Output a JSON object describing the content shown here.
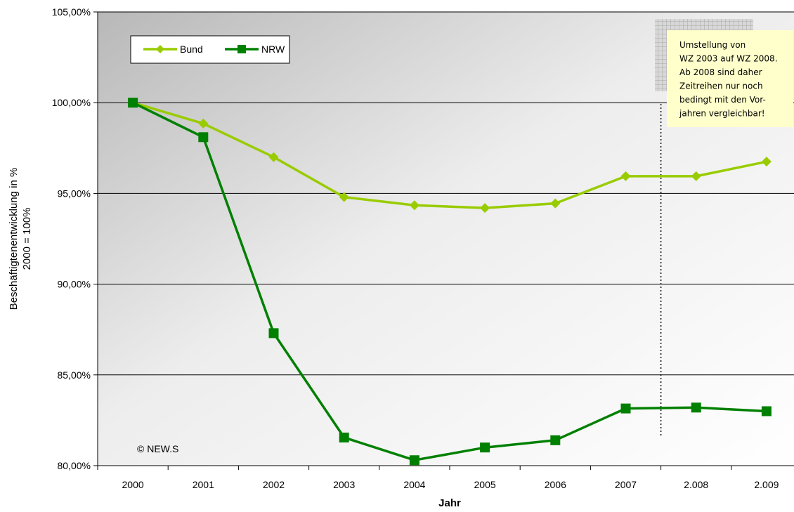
{
  "chart_data": {
    "type": "line",
    "categories": [
      "2000",
      "2001",
      "2002",
      "2003",
      "2004",
      "2005",
      "2006",
      "2007",
      "2.008",
      "2.009"
    ],
    "series": [
      {
        "name": "Bund",
        "values": [
          100.0,
          98.85,
          97.0,
          94.8,
          94.35,
          94.2,
          94.45,
          95.95,
          95.95,
          96.75
        ],
        "color": "#99cc00",
        "marker": "diamond"
      },
      {
        "name": "NRW",
        "values": [
          100.0,
          98.1,
          87.3,
          81.55,
          80.3,
          81.0,
          81.4,
          83.15,
          83.2,
          83.0
        ],
        "color": "#008000",
        "marker": "square"
      }
    ],
    "xlabel": "Jahr",
    "ylabel_lines": [
      "Beschäftigtenentwicklung in %",
      "2000 = 100%"
    ],
    "ylim": [
      80,
      105
    ],
    "yticks": [
      80,
      85,
      90,
      95,
      100,
      105
    ],
    "ytick_labels": [
      "80,00%",
      "85,00%",
      "90,00%",
      "95,00%",
      "100,00%",
      "105,00%"
    ],
    "grid": true,
    "legend_position": "top-left",
    "watermark": "© NEW.S",
    "annotation": {
      "lines": [
        "Umstellung von",
        "WZ 2003 auf WZ 2008.",
        "Ab 2008 sind daher",
        "Zeitreihen nur noch",
        "bedingt mit den Vor-",
        "jahren vergleichbar!"
      ],
      "background": "#ffffcc"
    },
    "break_after_category": "2007"
  }
}
